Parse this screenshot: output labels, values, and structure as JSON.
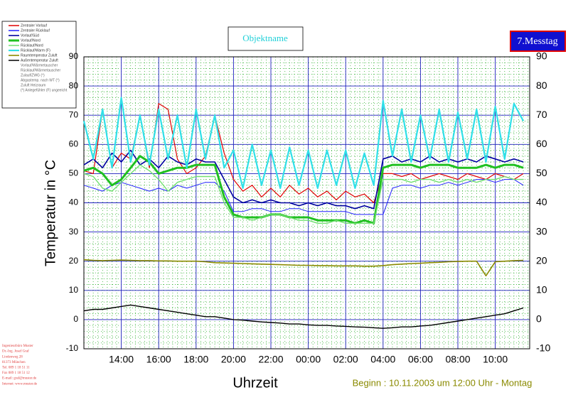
{
  "chart_data": {
    "type": "line",
    "object_name": "Objektname",
    "day_label": "7.Messtag",
    "ylabel": "Temperatur in °C",
    "xlabel": "Uhrzeit",
    "subtitle": "Beginn : 10.11.2003 um 12:00 Uhr - Montag",
    "xlim": [
      0,
      23.84
    ],
    "ylim": [
      -10,
      90
    ],
    "yticks": [
      -10,
      0,
      10,
      20,
      30,
      40,
      50,
      60,
      70,
      80,
      90
    ],
    "xticks": [
      {
        "value": 2,
        "label": "14:00"
      },
      {
        "value": 4,
        "label": "16:00"
      },
      {
        "value": 6,
        "label": "18:00"
      },
      {
        "value": 8,
        "label": "20:00"
      },
      {
        "value": 10,
        "label": "22:00"
      },
      {
        "value": 12,
        "label": "00:00"
      },
      {
        "value": 14,
        "label": "02:00"
      },
      {
        "value": 16,
        "label": "04:00"
      },
      {
        "value": 18,
        "label": "06:00"
      },
      {
        "value": 20,
        "label": "08:00"
      },
      {
        "value": 22,
        "label": "10:00"
      }
    ],
    "grid": true,
    "minor_grid": true,
    "x": [
      0,
      0.5,
      1,
      1.5,
      2,
      2.5,
      3,
      3.5,
      4,
      4.5,
      5,
      5.5,
      6,
      6.5,
      7,
      7.5,
      8,
      8.5,
      9,
      9.5,
      10,
      10.5,
      11,
      11.5,
      12,
      12.5,
      13,
      13.5,
      14,
      14.5,
      15,
      15.5,
      16,
      16.5,
      17,
      17.5,
      18,
      18.5,
      19,
      19.5,
      20,
      20.5,
      21,
      21.5,
      22,
      22.5,
      23,
      23.5
    ],
    "series": [
      {
        "name": "Zentraler Vorlauf",
        "color": "#e00000",
        "width": 1.2,
        "values": [
          51,
          50,
          72,
          52,
          57,
          55,
          70,
          52,
          74,
          72,
          55,
          50,
          52,
          56,
          70,
          57,
          48,
          44,
          46,
          42,
          45,
          42,
          46,
          43,
          45,
          42,
          44,
          41,
          44,
          42,
          43,
          40,
          50,
          50,
          49,
          50,
          48,
          49,
          50,
          49,
          48,
          50,
          49,
          48,
          50,
          49,
          48,
          50
        ]
      },
      {
        "name": "Zentraler Rücklauf",
        "color": "#2020ff",
        "width": 1,
        "values": [
          46,
          45,
          44,
          46,
          47,
          46,
          45,
          44,
          45,
          44,
          46,
          45,
          46,
          47,
          47,
          44,
          37,
          37,
          38,
          38,
          37,
          37,
          38,
          38,
          37,
          37,
          37,
          37,
          37,
          36,
          36,
          36,
          36,
          45,
          46,
          46,
          45,
          46,
          46,
          47,
          46,
          47,
          48,
          48,
          47,
          48,
          48,
          46
        ]
      },
      {
        "name": "Vorlauf/Süd",
        "color": "#0000a0",
        "width": 1.6,
        "values": [
          53,
          55,
          52,
          57,
          54,
          58,
          53,
          55,
          52,
          56,
          54,
          53,
          55,
          54,
          54,
          48,
          42,
          40,
          41,
          40,
          41,
          40,
          40,
          39,
          40,
          39,
          40,
          39,
          39,
          38,
          39,
          38,
          55,
          56,
          54,
          55,
          54,
          56,
          54,
          55,
          54,
          55,
          54,
          56,
          55,
          54,
          55,
          54
        ]
      },
      {
        "name": "Vorlauf/Nord",
        "color": "#20c020",
        "width": 3,
        "values": [
          51,
          52,
          50,
          46,
          48,
          52,
          56,
          54,
          50,
          51,
          52,
          52,
          53,
          53,
          53,
          42,
          36,
          35,
          35,
          35,
          36,
          36,
          35,
          35,
          35,
          34,
          34,
          34,
          34,
          33,
          34,
          33,
          52,
          53,
          53,
          53,
          52,
          53,
          53,
          53,
          52,
          52,
          52,
          53,
          52,
          53,
          53,
          52
        ]
      },
      {
        "name": "Rücklauf/Nord",
        "color": "#70e070",
        "width": 1.4,
        "values": [
          50,
          49,
          45,
          44,
          47,
          50,
          53,
          51,
          48,
          44,
          47,
          48,
          49,
          49,
          49,
          40,
          35,
          35,
          34,
          35,
          36,
          36,
          35,
          34,
          34,
          33,
          33,
          34,
          33,
          33,
          33,
          33,
          48,
          48,
          48,
          47,
          48,
          48,
          47,
          48,
          47,
          48,
          47,
          48,
          48,
          49,
          48,
          48
        ]
      },
      {
        "name": "Rücklauf/Warm (F)",
        "color": "#30e0e8",
        "width": 2.2,
        "values": [
          68,
          55,
          72,
          52,
          76,
          54,
          70,
          53,
          72,
          55,
          70,
          52,
          72,
          55,
          70,
          52,
          58,
          45,
          60,
          46,
          58,
          45,
          59,
          46,
          58,
          45,
          58,
          46,
          58,
          45,
          57,
          46,
          75,
          56,
          72,
          54,
          70,
          55,
          72,
          54,
          71,
          55,
          72,
          54,
          73,
          55,
          74,
          68
        ]
      },
      {
        "name": "Raumtemperatur Zuluft",
        "color": "#8a8a00",
        "width": 1.6,
        "values": [
          20.5,
          20.3,
          20.2,
          20.3,
          20.4,
          20.3,
          20.2,
          20.2,
          20.1,
          20.1,
          20.0,
          20.0,
          20.0,
          19.8,
          19.5,
          19.4,
          19.3,
          19.2,
          19.1,
          19.0,
          18.9,
          18.8,
          18.7,
          18.6,
          18.6,
          18.5,
          18.5,
          18.4,
          18.4,
          18.4,
          18.3,
          18.3,
          18.5,
          18.8,
          19.0,
          19.2,
          19.3,
          19.5,
          19.6,
          19.8,
          19.9,
          20.0,
          20.0,
          15.0,
          19.8,
          20.0,
          20.2,
          20.3
        ]
      },
      {
        "name": "Außentemperatur Zuluft",
        "color": "#000000",
        "width": 1.4,
        "values": [
          3,
          3.5,
          3.5,
          4,
          4.5,
          5,
          4.5,
          4,
          3.5,
          3,
          2.5,
          2,
          1.5,
          1,
          1,
          0.5,
          0,
          -0.2,
          -0.5,
          -0.8,
          -1,
          -1.2,
          -1.5,
          -1.5,
          -1.8,
          -2,
          -2,
          -2.2,
          -2.3,
          -2.5,
          -2.6,
          -2.8,
          -3,
          -2.8,
          -2.5,
          -2.5,
          -2.2,
          -2,
          -1.5,
          -1,
          -0.5,
          0,
          0.5,
          1,
          1.5,
          2,
          3,
          4
        ]
      }
    ],
    "legend_notes": [
      "Vorlauf/Wärmetauscher",
      "Rücklauf/Wärmetauscher",
      "Zulauf/ZWG (°)",
      "Abgastemp. nach WT (°)",
      "Zuluft Heizraum",
      "(*) Anlegefühler (F) ungeeicht"
    ],
    "footer_lines": [
      "Ingenieurbüro Muster",
      "Dr.-Ing. Josef Graf",
      "Lindenweg 28",
      "81373 München",
      "Tel. 089 1 18 51 11",
      "Fax 089 1 18 51 12",
      "E-mail: graf@muster.de",
      "Internet: www.muster.de"
    ]
  }
}
